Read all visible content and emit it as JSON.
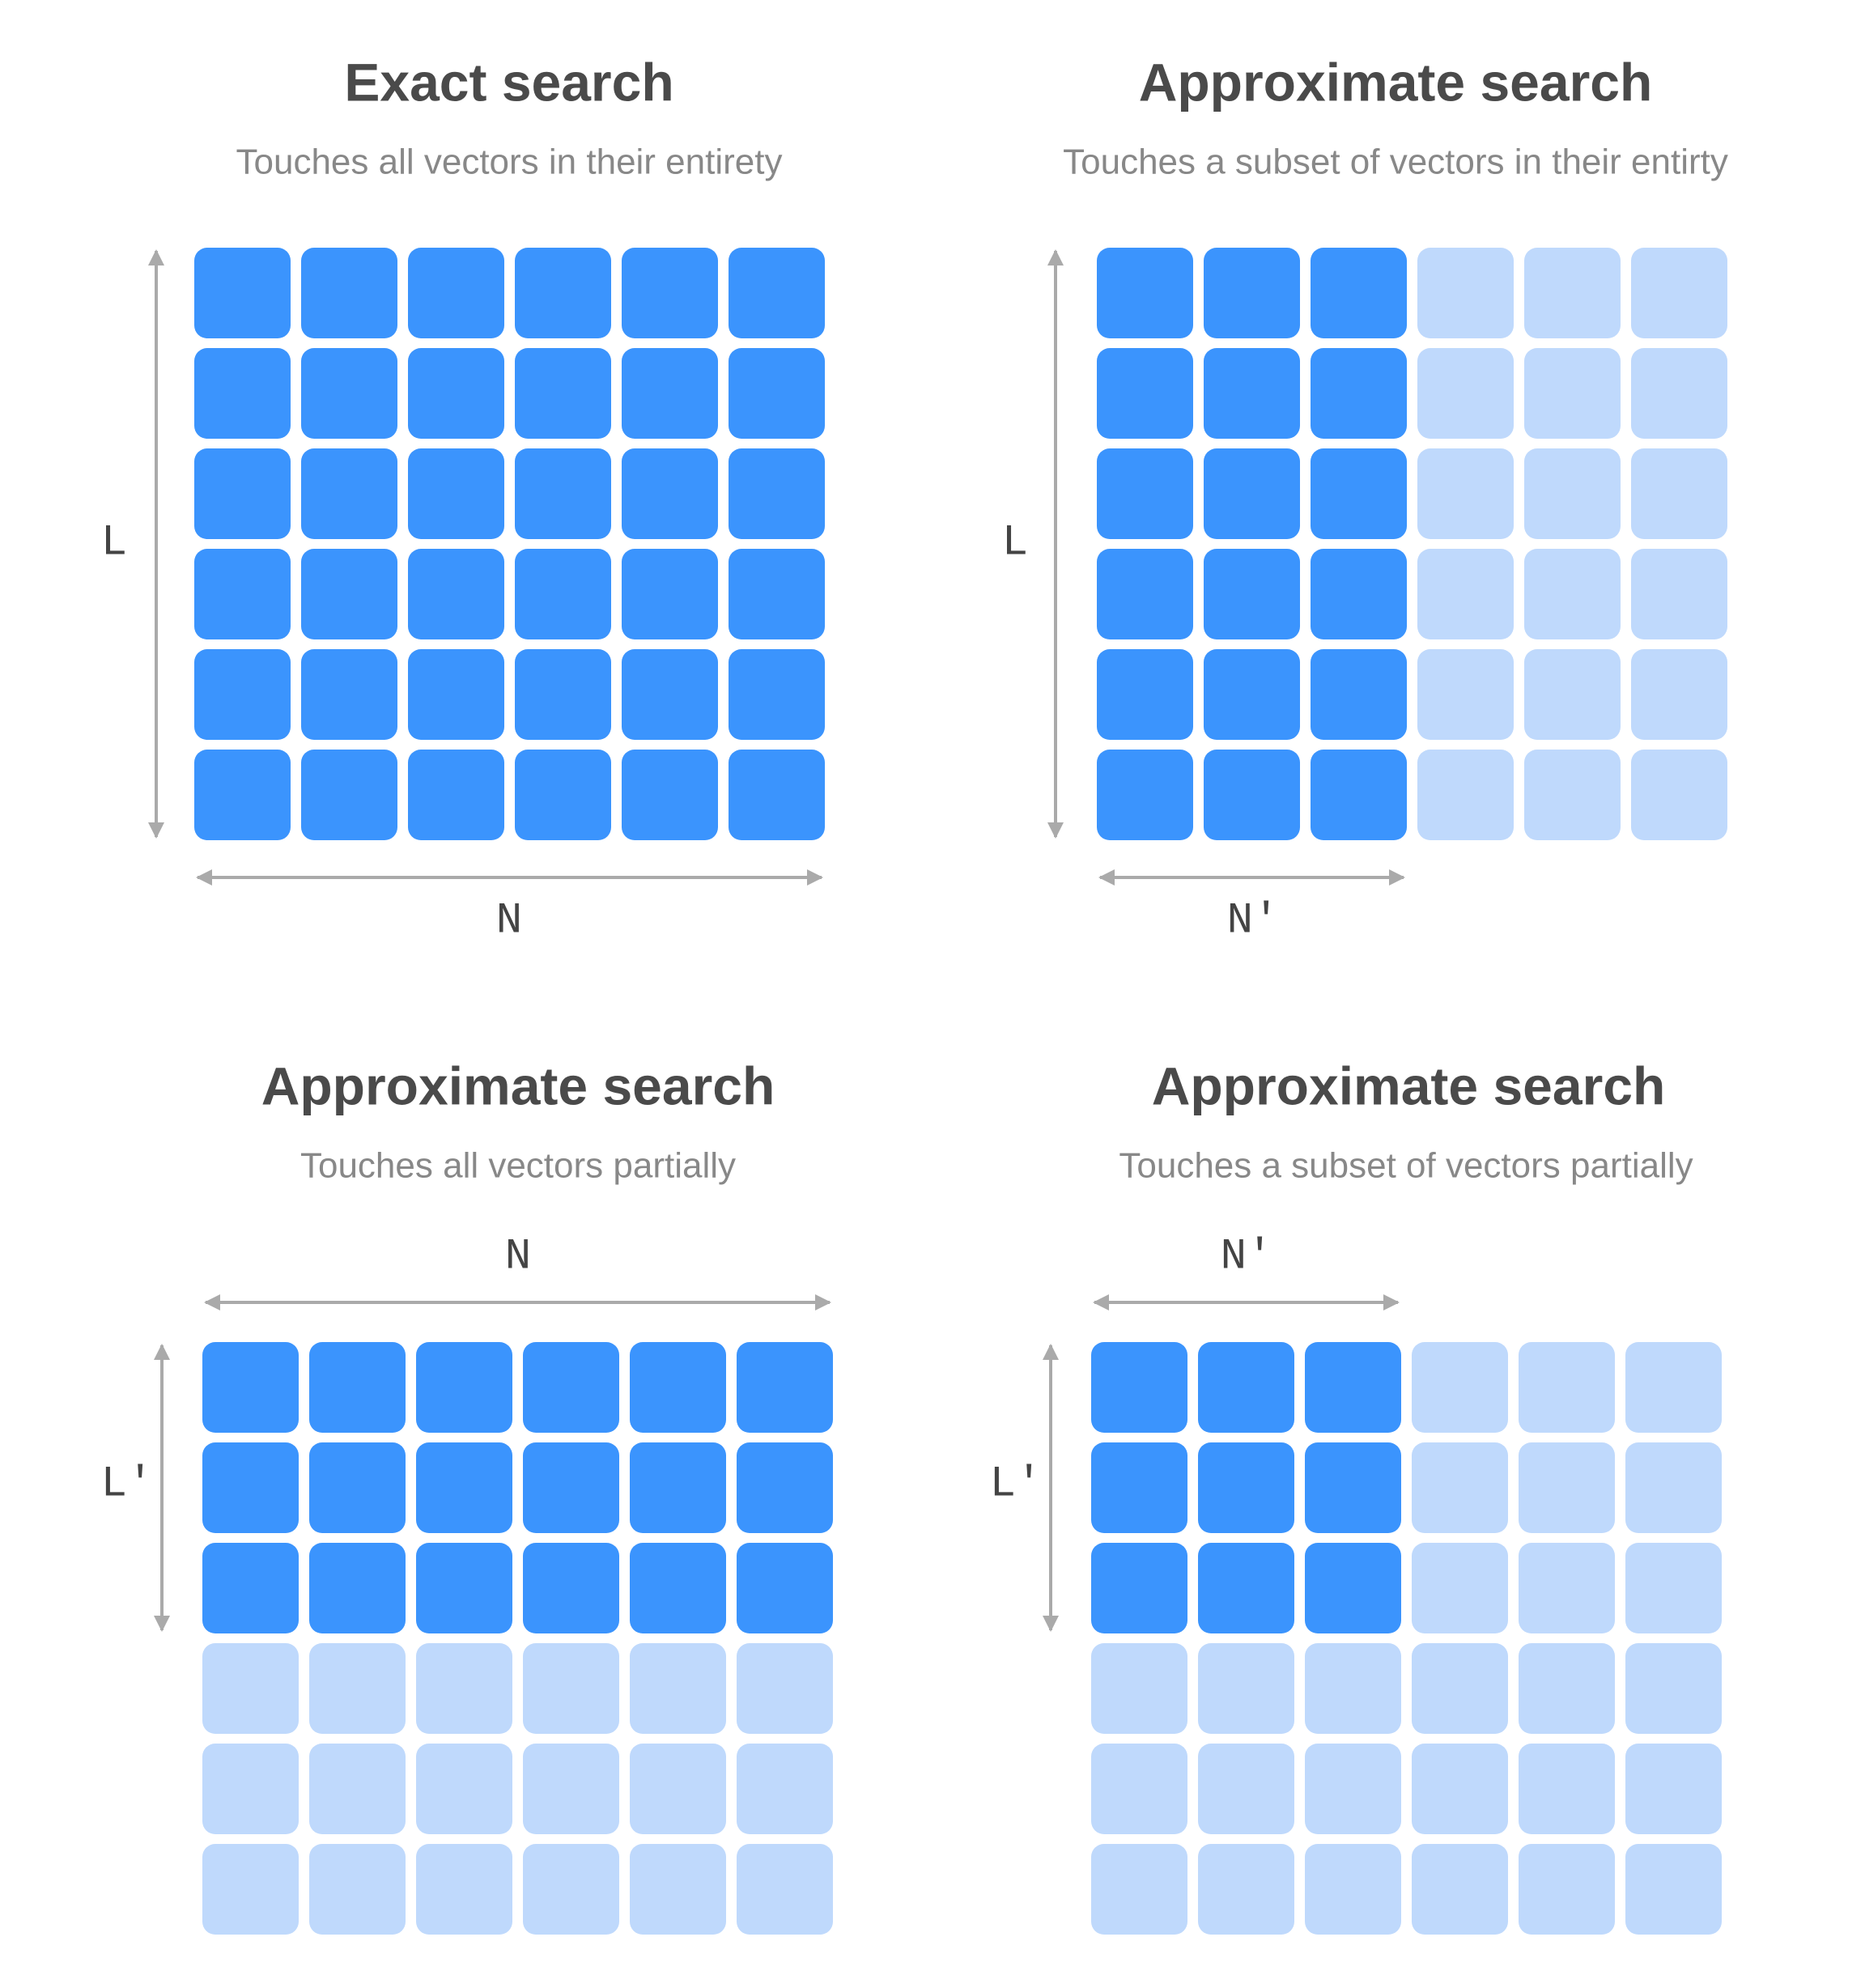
{
  "colors": {
    "active": "#3b94fd",
    "inactive": "#bfd9fc",
    "arrow": "#aaaaaa",
    "title": "#4a4a4a",
    "subtitle": "#888888"
  },
  "panels": [
    {
      "title": "Exact search",
      "subtitle": "Touches all vectors in their entirety",
      "width_label": "N",
      "height_label": "L",
      "rows": 6,
      "cols": 6,
      "active_rows": 6,
      "active_cols": 6
    },
    {
      "title": "Approximate search",
      "subtitle": "Touches a subset of vectors in their entirty",
      "width_label": "N′",
      "height_label": "L",
      "rows": 6,
      "cols": 6,
      "active_rows": 6,
      "active_cols": 3
    },
    {
      "title": "Approximate search",
      "subtitle": "Touches all vectors partially",
      "width_label": "N",
      "height_label": "L′",
      "rows": 6,
      "cols": 6,
      "active_rows": 3,
      "active_cols": 6
    },
    {
      "title": "Approximate search",
      "subtitle": "Touches a subset of vectors partially",
      "width_label": "N′",
      "height_label": "L′",
      "rows": 6,
      "cols": 6,
      "active_rows": 3,
      "active_cols": 3
    }
  ]
}
